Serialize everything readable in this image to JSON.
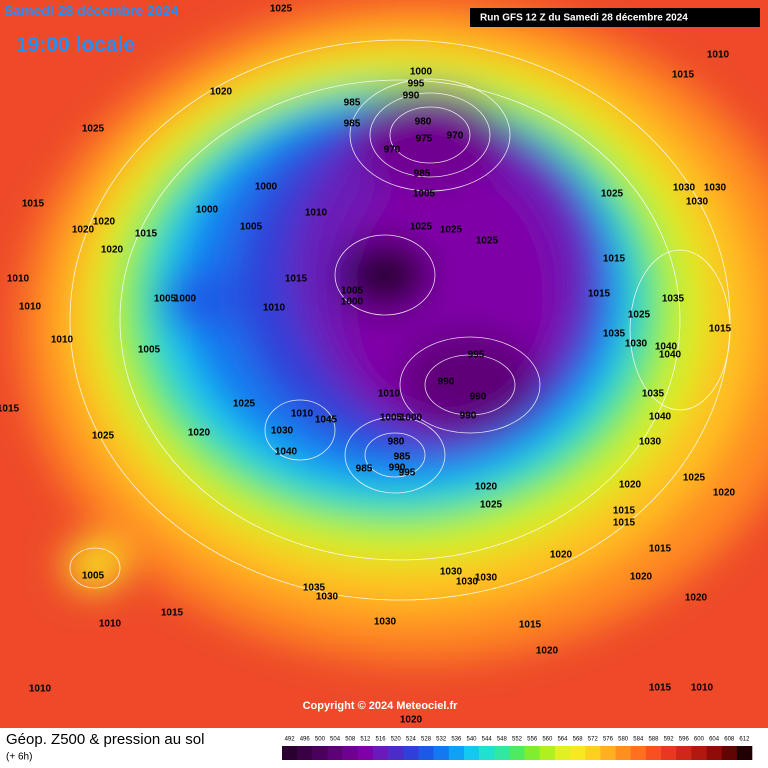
{
  "header": {
    "date": "Samedi 28 décembre 2024",
    "time": "19:00 locale",
    "run": "Run GFS 12 Z du Samedi 28 décembre 2024"
  },
  "footer": {
    "title": "Géop. Z500 & pression au sol",
    "lead": "(+ 6h)",
    "copyright": "Copyright © 2024 Meteociel.fr"
  },
  "colorbar": {
    "ticks": [
      492,
      496,
      500,
      504,
      508,
      512,
      516,
      520,
      524,
      528,
      532,
      536,
      540,
      544,
      548,
      552,
      556,
      560,
      564,
      568,
      572,
      576,
      580,
      584,
      588,
      592,
      596,
      600,
      604,
      608,
      612
    ],
    "colors": [
      "#2a0030",
      "#3a0045",
      "#4b0060",
      "#5e0078",
      "#700090",
      "#8000a8",
      "#6a1ab8",
      "#4b2cc8",
      "#2f3fd8",
      "#1b5ae6",
      "#1478f0",
      "#10a0f5",
      "#14c8f0",
      "#20e0d0",
      "#30e8a0",
      "#50ea60",
      "#80ee30",
      "#b0f020",
      "#e0f020",
      "#f8e820",
      "#ffd020",
      "#ffb020",
      "#ff9020",
      "#ff7020",
      "#f85020",
      "#e83820",
      "#d02818",
      "#b01810",
      "#900c08",
      "#600404",
      "#200000"
    ]
  },
  "pressure_labels": [
    "1025",
    "1010",
    "1015",
    "1020",
    "1025",
    "1000",
    "995",
    "990",
    "985",
    "985",
    "980",
    "975",
    "970",
    "970",
    "985",
    "1005",
    "1025",
    "1030",
    "1030",
    "1030",
    "1000",
    "1000",
    "1010",
    "1005",
    "1025",
    "1025",
    "1025",
    "1015",
    "1020",
    "1020",
    "1020",
    "1015",
    "1010",
    "1010",
    "1015",
    "1005",
    "1000",
    "1005",
    "1000",
    "1010",
    "1015",
    "1015",
    "1035",
    "1025",
    "1015",
    "1035",
    "1030",
    "1040",
    "1040",
    "1010",
    "1005",
    "995",
    "990",
    "990",
    "990",
    "1010",
    "1035",
    "1040",
    "1015",
    "1025",
    "1010",
    "1045",
    "1030",
    "1005",
    "1000",
    "1025",
    "1020",
    "1040",
    "980",
    "985",
    "990",
    "995",
    "985",
    "1030",
    "1025",
    "1020",
    "1025",
    "1020",
    "1020",
    "1015",
    "1015",
    "1015",
    "1020",
    "1020",
    "1005",
    "1030",
    "1030",
    "1030",
    "1035",
    "1030",
    "1015",
    "1010",
    "1030",
    "1015",
    "1020",
    "1020",
    "1010",
    "1015",
    "1010",
    "1020"
  ]
}
